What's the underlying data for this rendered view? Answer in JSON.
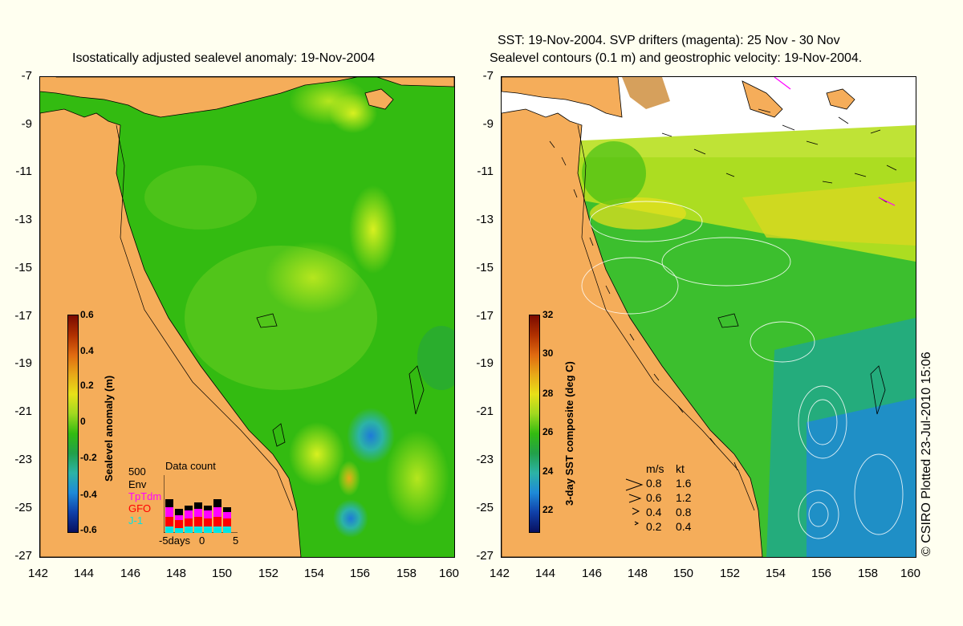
{
  "left_panel": {
    "title": "Isostatically adjusted sealevel anomaly: 19-Nov-2004",
    "colorbar": {
      "label": "Sealevel anomaly (m)",
      "ticks": [
        "0.6",
        "0.4",
        "0.2",
        "0",
        "-0.2",
        "-0.4",
        "-0.6"
      ]
    },
    "data_count": {
      "title": "Data count",
      "max_label": "500",
      "series": [
        "Env",
        "TpTdm",
        "GFO",
        "J-1"
      ],
      "series_colors": [
        "#000000",
        "#ff00ff",
        "#ff0000",
        "#00e5e5"
      ],
      "x_labels": [
        "-5days",
        "0",
        "5"
      ]
    }
  },
  "right_panel": {
    "title_line1": "SST: 19-Nov-2004. SVP drifters (magenta): 25 Nov - 30 Nov",
    "title_line2": "Sealevel contours (0.1 m) and geostrophic velocity: 19-Nov-2004.",
    "colorbar": {
      "label": "3-day SST composite (deg C)",
      "ticks": [
        "32",
        "30",
        "28",
        "26",
        "24",
        "22"
      ]
    },
    "velocity_legend": {
      "header_ms": "m/s",
      "header_kt": "kt",
      "rows": [
        {
          "ms": "0.8",
          "kt": "1.6"
        },
        {
          "ms": "0.6",
          "kt": "1.2"
        },
        {
          "ms": "0.4",
          "kt": "0.8"
        },
        {
          "ms": "0.2",
          "kt": "0.4"
        }
      ]
    }
  },
  "axes": {
    "y_ticks": [
      "-7",
      "-9",
      "-11",
      "-13",
      "-15",
      "-17",
      "-19",
      "-21",
      "-23",
      "-25",
      "-27"
    ],
    "x_ticks": [
      "142",
      "144",
      "146",
      "148",
      "150",
      "152",
      "154",
      "156",
      "158",
      "160"
    ]
  },
  "copyright": "© CSIRO Plotted 23-Jul-2010 15:06",
  "colors": {
    "land": "#f5ad5a",
    "ocean_green": "#33bb11",
    "background": "#fffff0"
  }
}
